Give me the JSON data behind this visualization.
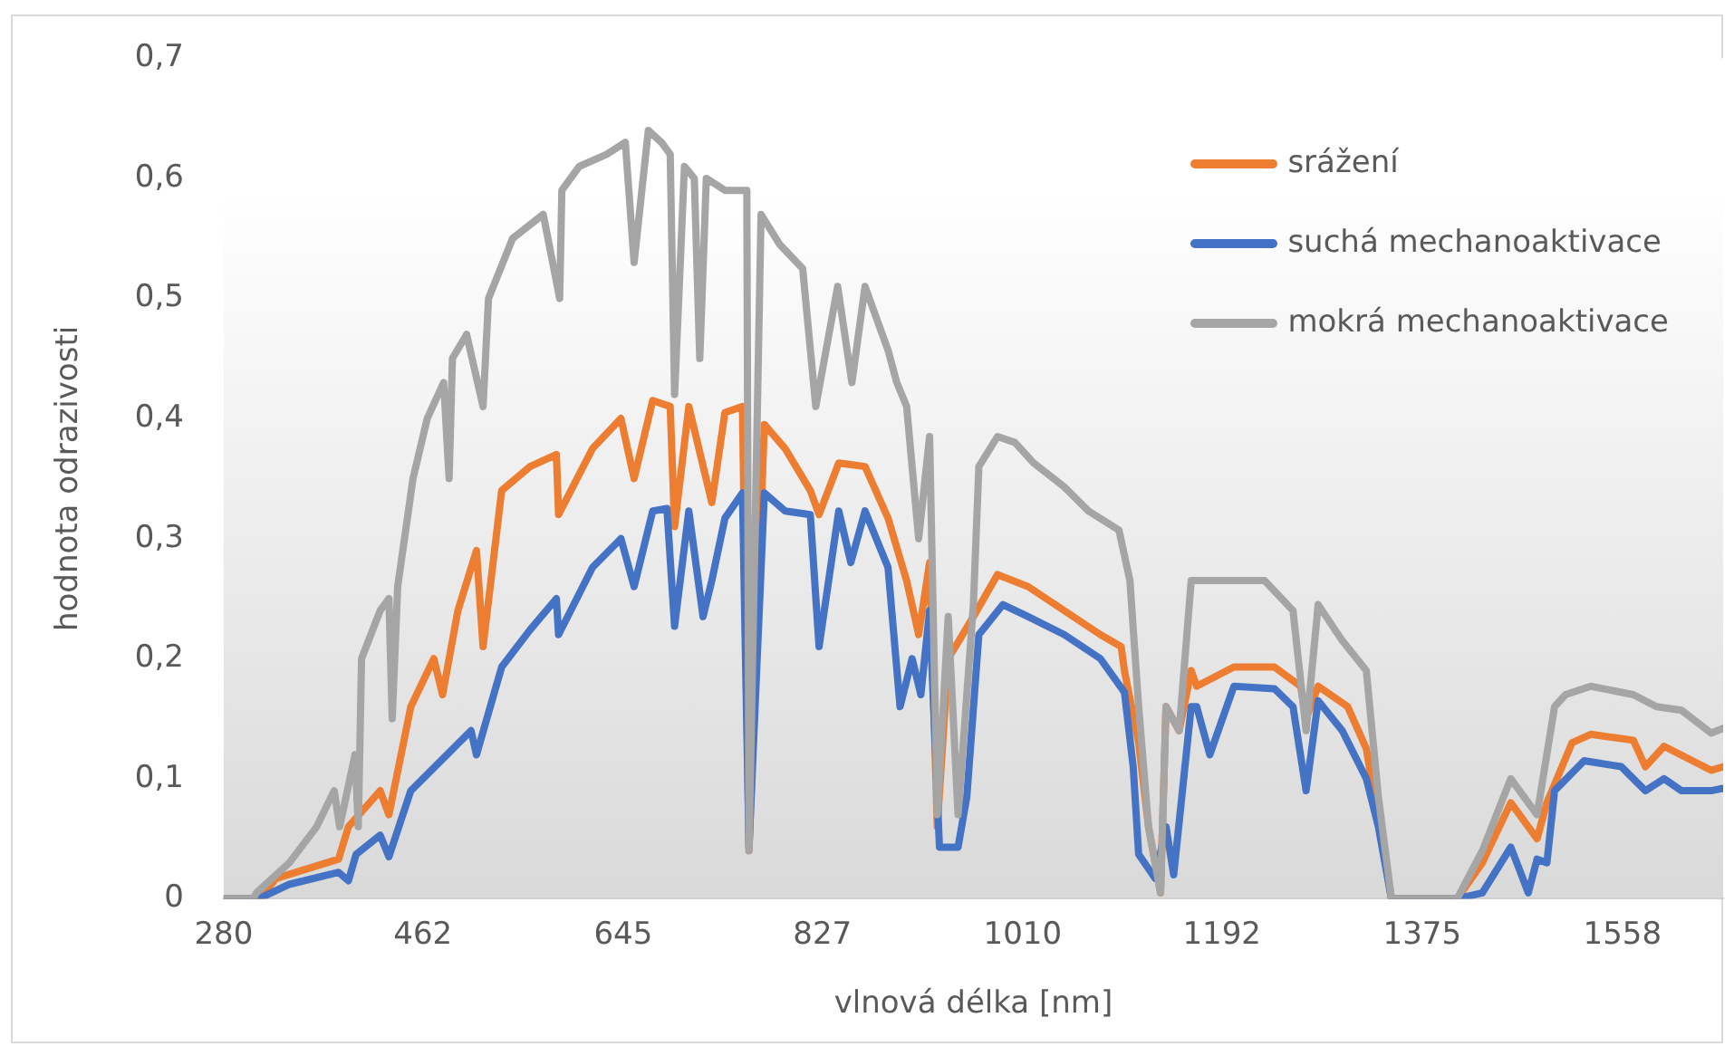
{
  "chart_data": {
    "type": "line",
    "xlabel": "vlnová délka [nm]",
    "ylabel": "hodnota odrazivosti",
    "xlim": [
      280,
      1650
    ],
    "ylim": [
      0,
      0.7
    ],
    "xticks": [
      280,
      462,
      645,
      827,
      1010,
      1192,
      1375,
      1558
    ],
    "yticks": [
      {
        "value": 0,
        "label": "0"
      },
      {
        "value": 0.1,
        "label": "0,1"
      },
      {
        "value": 0.2,
        "label": "0,2"
      },
      {
        "value": 0.3,
        "label": "0,3"
      },
      {
        "value": 0.4,
        "label": "0,4"
      },
      {
        "value": 0.5,
        "label": "0,5"
      },
      {
        "value": 0.6,
        "label": "0,6"
      },
      {
        "value": 0.7,
        "label": "0,7"
      }
    ],
    "grid": false,
    "legend": "top right",
    "series": [
      {
        "name": "srážení",
        "color": "#ed7d31",
        "x": [
          280,
          312,
          328,
          385,
          394,
          423,
          431,
          451,
          472,
          480,
          494,
          511,
          517,
          534,
          560,
          584,
          586,
          617,
          643,
          655,
          672,
          688,
          692,
          705,
          726,
          738,
          754,
          760,
          774,
          793,
          816,
          824,
          842,
          866,
          887,
          904,
          915,
          925,
          932,
          942,
          965,
          987,
          1015,
          1048,
          1081,
          1100,
          1103,
          1116,
          1125,
          1136,
          1141,
          1153,
          1164,
          1169,
          1203,
          1240,
          1264,
          1269,
          1280,
          1307,
          1324,
          1335,
          1347,
          1407,
          1430,
          1456,
          1480,
          1489,
          1512,
          1529,
          1568,
          1579,
          1596,
          1639,
          1650
        ],
        "values": [
          0,
          0,
          0.017,
          0.033,
          0.06,
          0.09,
          0.07,
          0.16,
          0.2,
          0.17,
          0.24,
          0.29,
          0.21,
          0.34,
          0.36,
          0.37,
          0.32,
          0.375,
          0.4,
          0.35,
          0.415,
          0.41,
          0.31,
          0.41,
          0.33,
          0.405,
          0.41,
          0.04,
          0.395,
          0.375,
          0.34,
          0.32,
          0.363,
          0.36,
          0.317,
          0.265,
          0.22,
          0.28,
          0.06,
          0.2,
          0.235,
          0.27,
          0.26,
          0.24,
          0.22,
          0.21,
          0.19,
          0.13,
          0.06,
          0.005,
          0.16,
          0.14,
          0.19,
          0.177,
          0.193,
          0.193,
          0.177,
          0.15,
          0.177,
          0.16,
          0.125,
          null,
          0,
          0,
          0.03,
          0.08,
          0.05,
          0.08,
          0.13,
          0.137,
          0.132,
          0.11,
          0.127,
          0.107,
          0.11
        ]
      },
      {
        "name": "suchá mechanoaktivace",
        "color": "#4472c4",
        "x": [
          280,
          312,
          340,
          385,
          394,
          401,
          423,
          431,
          451,
          484,
          506,
          511,
          534,
          560,
          584,
          586,
          617,
          643,
          655,
          672,
          685,
          692,
          705,
          718,
          726,
          738,
          754,
          760,
          774,
          793,
          816,
          824,
          842,
          853,
          866,
          887,
          898,
          909,
          917,
          925,
          934,
          951,
          959,
          970,
          992,
          1015,
          1048,
          1081,
          1103,
          1111,
          1116,
          1131,
          1141,
          1148,
          1164,
          1169,
          1181,
          1203,
          1240,
          1257,
          1269,
          1280,
          1302,
          1324,
          1335,
          1347,
          1407,
          1430,
          1456,
          1472,
          1480,
          1489,
          1496,
          1523,
          1557,
          1579,
          1596,
          1612,
          1639,
          1650
        ],
        "values": [
          0,
          0,
          0.012,
          0.022,
          0.015,
          0.037,
          0.053,
          0.035,
          0.09,
          0.12,
          0.14,
          0.12,
          0.193,
          0.224,
          0.25,
          0.22,
          0.276,
          0.3,
          0.26,
          0.323,
          0.325,
          0.227,
          0.323,
          0.235,
          0.265,
          0.317,
          0.338,
          0.043,
          0.338,
          0.323,
          0.32,
          0.21,
          0.323,
          0.28,
          0.323,
          0.276,
          0.16,
          0.2,
          0.17,
          0.24,
          0.043,
          0.043,
          0.085,
          0.22,
          0.245,
          0.235,
          0.22,
          0.2,
          0.172,
          0.11,
          0.037,
          0.017,
          0.06,
          0.02,
          0.16,
          0.16,
          0.12,
          0.177,
          0.175,
          0.16,
          0.09,
          0.165,
          0.14,
          0.1,
          0.06,
          0,
          0,
          0.005,
          0.043,
          0.005,
          0.033,
          0.03,
          0.09,
          0.115,
          0.11,
          0.09,
          0.1,
          0.09,
          0.09,
          0.092
        ]
      },
      {
        "name": "mokrá mechanoaktivace",
        "color": "#a5a5a5",
        "x": [
          280,
          307,
          310,
          340,
          365,
          381,
          386,
          400,
          403,
          406,
          423,
          431,
          434,
          439,
          453,
          466,
          481,
          486,
          489,
          502,
          517,
          522,
          544,
          572,
          587,
          589,
          605,
          630,
          647,
          655,
          668,
          680,
          688,
          692,
          701,
          710,
          715,
          721,
          738,
          758,
          760,
          771,
          788,
          809,
          821,
          841,
          854,
          866,
          887,
          895,
          904,
          915,
          925,
          932,
          942,
          951,
          965,
          970,
          987,
          1003,
          1020,
          1048,
          1070,
          1098,
          1108,
          1116,
          1125,
          1136,
          1141,
          1153,
          1164,
          1181,
          1203,
          1231,
          1257,
          1269,
          1280,
          1302,
          1324,
          1335,
          1347,
          1407,
          1430,
          1456,
          1480,
          1496,
          1506,
          1529,
          1568,
          1589,
          1612,
          1639,
          1650
        ],
        "values": [
          0,
          0,
          0.005,
          0.03,
          0.06,
          0.09,
          0.06,
          0.12,
          0.06,
          0.2,
          0.24,
          0.25,
          0.15,
          0.26,
          0.35,
          0.4,
          0.43,
          0.35,
          0.45,
          0.47,
          0.41,
          0.5,
          0.55,
          0.57,
          0.5,
          0.59,
          0.61,
          0.62,
          0.63,
          0.53,
          0.64,
          0.63,
          0.62,
          0.42,
          0.61,
          0.6,
          0.45,
          0.6,
          0.59,
          0.59,
          0.04,
          0.57,
          0.545,
          0.525,
          0.41,
          0.51,
          0.43,
          0.51,
          0.457,
          0.43,
          0.41,
          0.3,
          0.385,
          0.07,
          0.235,
          0.07,
          0.245,
          0.36,
          0.385,
          0.38,
          0.363,
          0.343,
          0.323,
          0.307,
          0.265,
          0.16,
          0.06,
          0.005,
          0.16,
          0.14,
          0.265,
          0.265,
          0.265,
          0.265,
          0.24,
          0.14,
          0.245,
          0.215,
          0.19,
          0.085,
          0,
          0,
          0.04,
          0.1,
          0.07,
          0.16,
          0.17,
          0.177,
          0.17,
          0.16,
          0.157,
          0.138,
          0.142
        ]
      }
    ]
  }
}
